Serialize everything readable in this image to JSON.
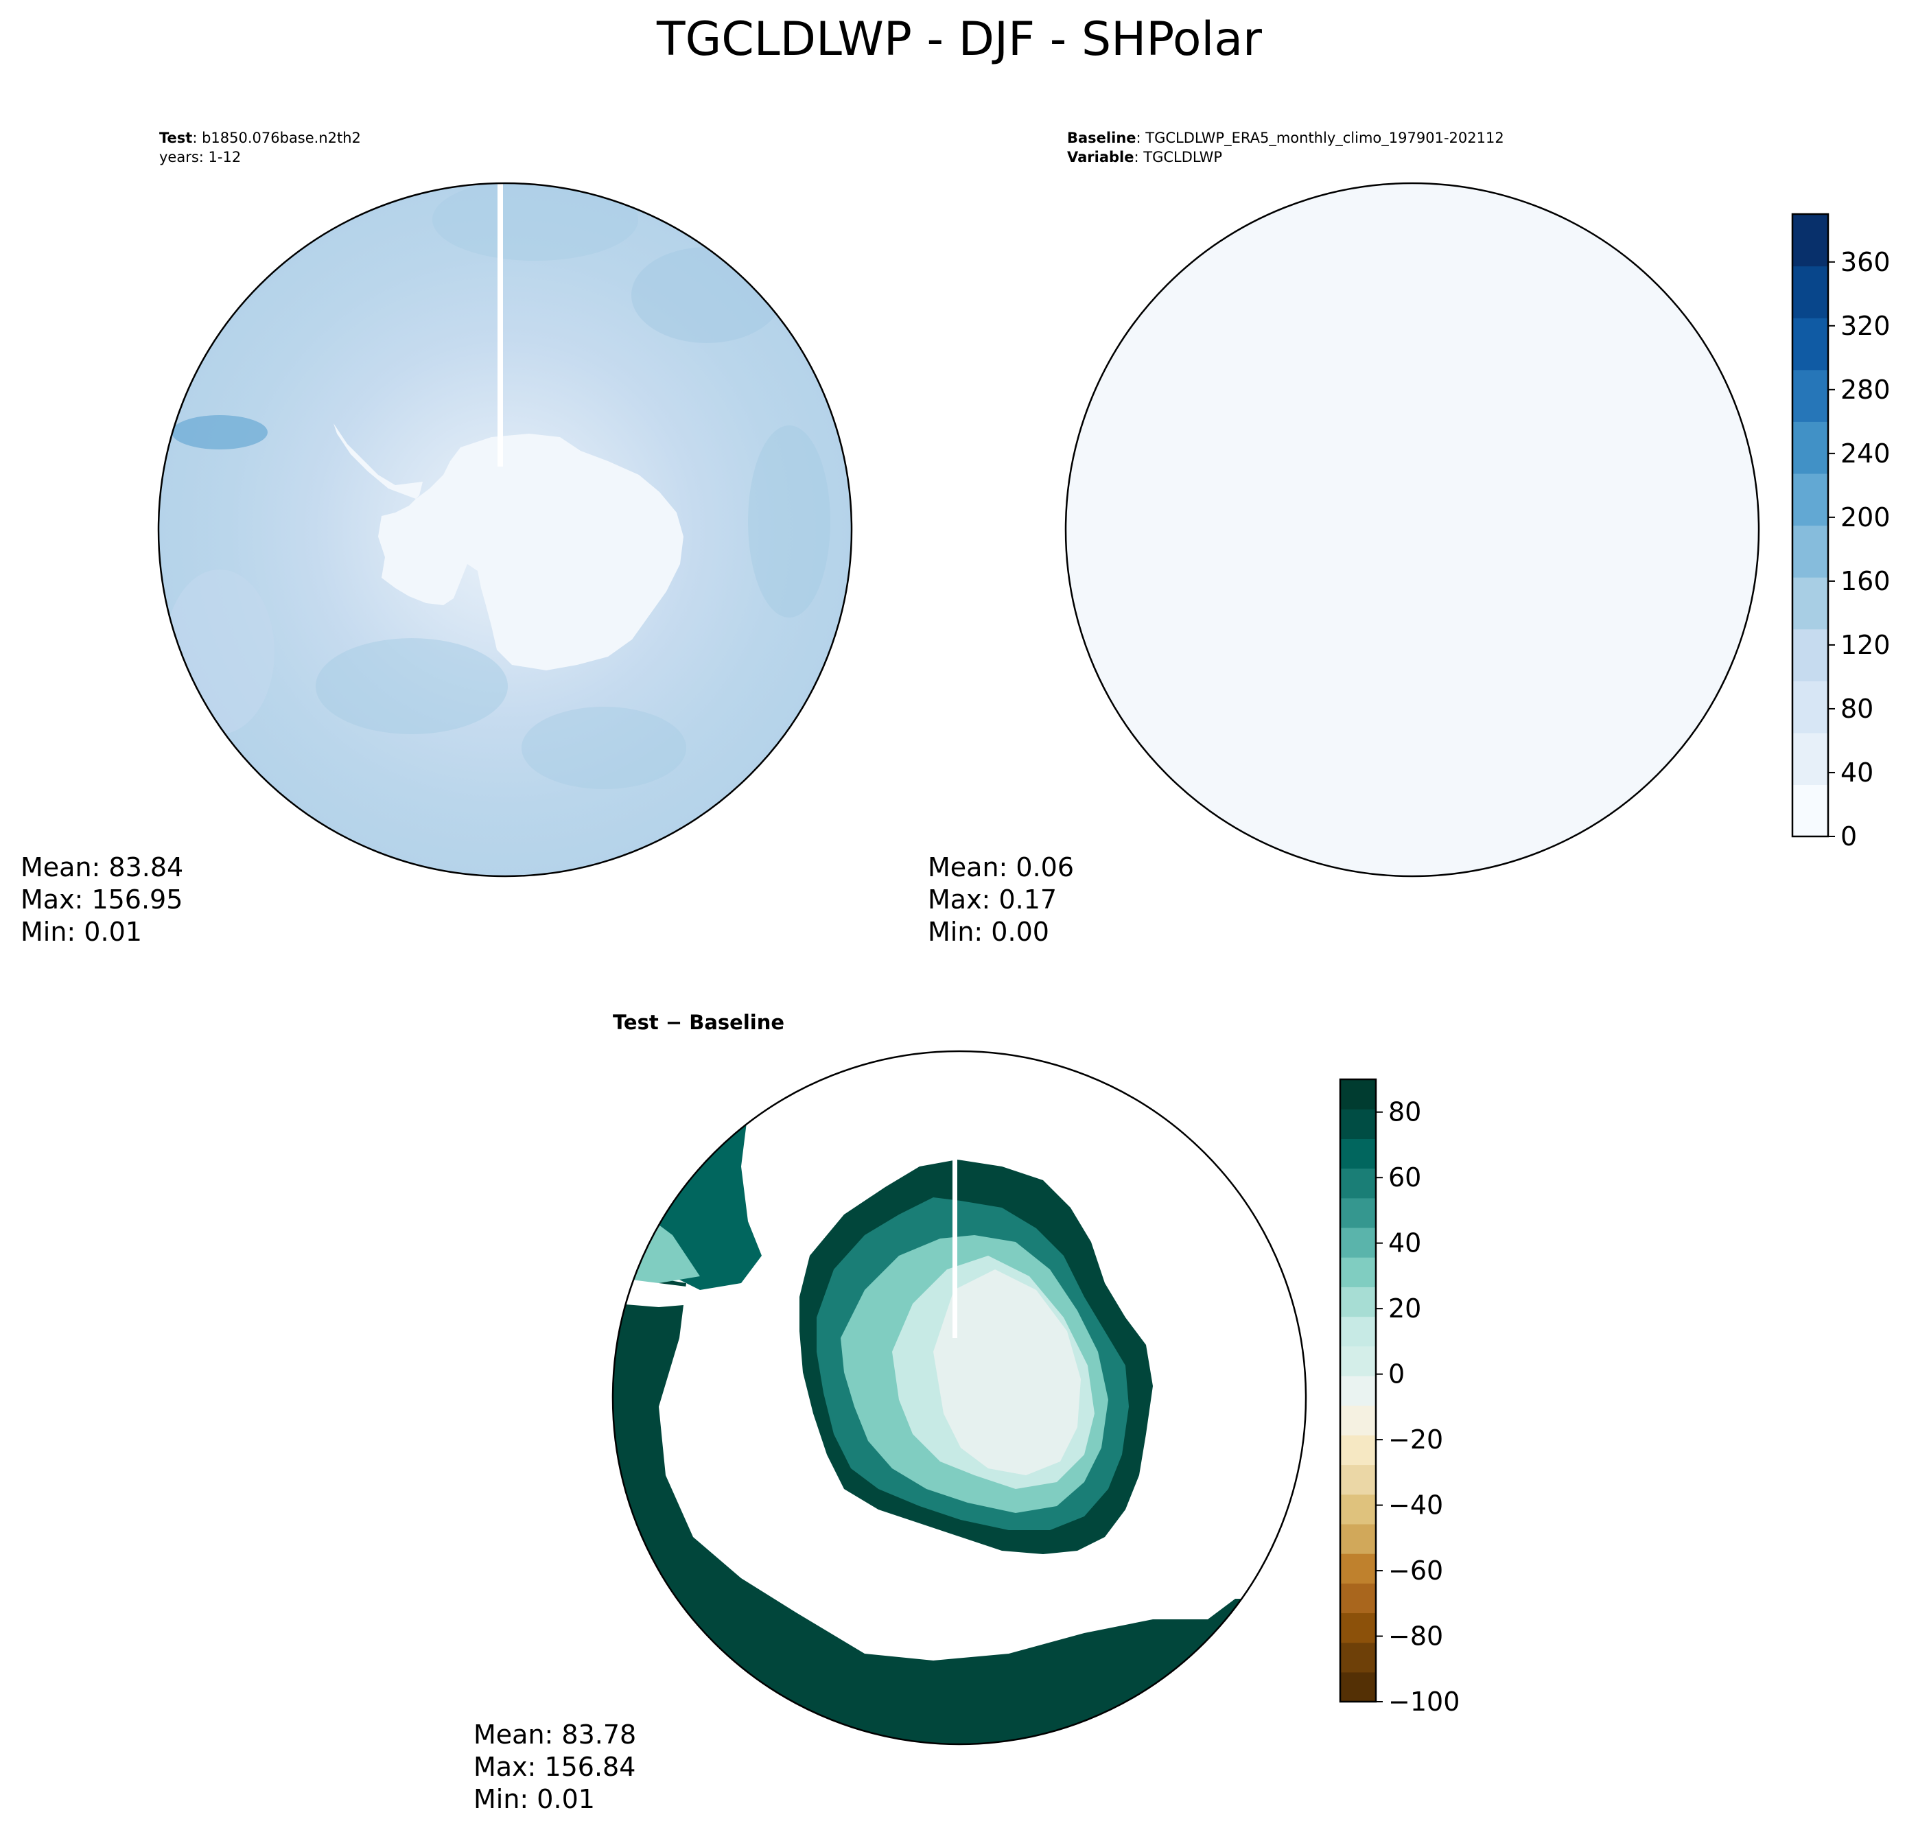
{
  "figure": {
    "title": "TGCLDLWP - DJF - SHPolar"
  },
  "panels": {
    "test": {
      "label_bold": "Test",
      "label_text": ": b1850.076base.n2th2",
      "line2": "years: 1-12",
      "stats": {
        "mean": "Mean: 83.84",
        "max": "Max: 156.95",
        "min": "Min:  0.01"
      }
    },
    "baseline": {
      "label_bold": "Baseline",
      "label_text": ": TGCLDLWP_ERA5_monthly_climo_197901-202112",
      "line2_bold": "Variable",
      "line2_text": ": TGCLDLWP",
      "stats": {
        "mean": "Mean:  0.06",
        "max": "Max:  0.17",
        "min": "Min:  0.00"
      }
    },
    "diff": {
      "title": "Test − Baseline",
      "stats": {
        "mean": "Mean: 83.78",
        "max": "Max: 156.84",
        "min": "Min:  0.01"
      }
    }
  },
  "colorbars": {
    "top": {
      "ticks": [
        "0",
        "40",
        "80",
        "120",
        "160",
        "200",
        "240",
        "280",
        "320",
        "360"
      ],
      "tick_values": [
        0,
        40,
        80,
        120,
        160,
        200,
        240,
        280,
        320,
        360
      ],
      "range": [
        0,
        390
      ],
      "colormap": "Blues",
      "colors": [
        "#f7fbff",
        "#e7f0f9",
        "#d7e6f5",
        "#c6dbef",
        "#a8cee4",
        "#86bcdc",
        "#62a8d3",
        "#4191c6",
        "#2676b8",
        "#105ba4",
        "#08468b",
        "#08306b"
      ]
    },
    "bottom": {
      "ticks": [
        "80",
        "60",
        "40",
        "20",
        "0",
        "−20",
        "−40",
        "−60",
        "−80",
        "−100"
      ],
      "tick_values": [
        80,
        60,
        40,
        20,
        0,
        -20,
        -40,
        -60,
        -80,
        -100
      ],
      "range": [
        -100,
        90
      ],
      "colormap": "BrBG",
      "colors": [
        "#543005",
        "#6e4008",
        "#8c510a",
        "#a9661d",
        "#bf812d",
        "#d1a85a",
        "#dfc27d",
        "#ebd7a6",
        "#f6e8c3",
        "#f5f1e1",
        "#eaf3f1",
        "#d4eee9",
        "#c7eae5",
        "#a7ddd4",
        "#80cdc1",
        "#5ab4ab",
        "#35978f",
        "#1a7e76",
        "#01665e",
        "#004d44",
        "#003c30"
      ]
    }
  }
}
